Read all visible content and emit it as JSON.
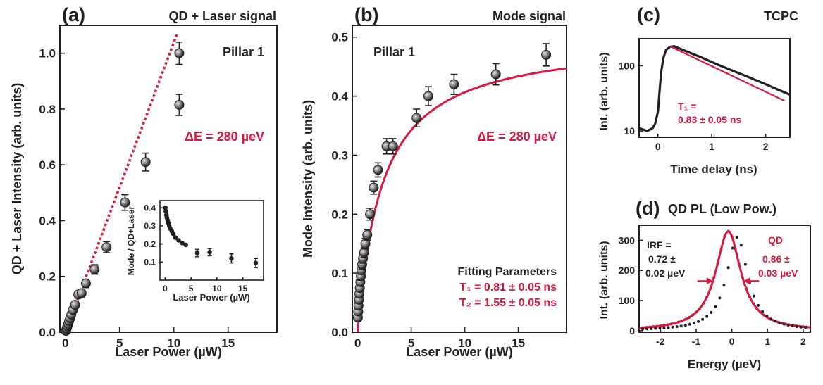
{
  "colors": {
    "ink": "#231f20",
    "accent": "#d7193f",
    "marker_light": "#e8e8e8"
  },
  "chart_data": [
    {
      "id": "a",
      "type": "scatter",
      "panel_label": "(a)",
      "title": "QD + Laser signal",
      "xlabel": "Laser Power (µW)",
      "ylabel": "QD + Laser Intensity (arb. units)",
      "xlim": [
        -0.5,
        19.5
      ],
      "ylim": [
        0,
        1.1
      ],
      "xticks": [
        0,
        5,
        10,
        15
      ],
      "yticks": [
        0.0,
        0.2,
        0.4,
        0.6,
        0.8,
        1.0
      ],
      "ytick_labels": [
        "0.0",
        "0.2",
        "0.4",
        "0.6",
        "0.8",
        "1.0"
      ],
      "annotations": [
        "Pillar 1",
        "ΔE = 280 µeV"
      ],
      "fit": {
        "style": "dotted-red",
        "x": [
          0,
          10.3
        ],
        "y": [
          0,
          1.07
        ]
      },
      "series": [
        {
          "x": [
            0.05,
            0.1,
            0.15,
            0.2,
            0.28,
            0.35,
            0.45,
            0.55,
            0.7,
            0.9,
            1.2,
            1.5,
            1.9,
            2.7,
            3.8,
            5.5,
            7.4,
            10.5
          ],
          "y": [
            0.005,
            0.01,
            0.015,
            0.022,
            0.03,
            0.04,
            0.05,
            0.063,
            0.08,
            0.098,
            0.135,
            0.14,
            0.175,
            0.225,
            0.305,
            0.465,
            0.61,
            0.815
          ],
          "err": [
            0.005,
            0.005,
            0.006,
            0.006,
            0.007,
            0.008,
            0.009,
            0.01,
            0.01,
            0.012,
            0.013,
            0.013,
            0.015,
            0.017,
            0.02,
            0.028,
            0.032,
            0.038
          ]
        }
      ],
      "extra_point": {
        "x": 10.5,
        "y": 1.0,
        "err": 0.04
      }
    },
    {
      "id": "a-inset",
      "type": "scatter",
      "xlabel": "Laser Power (µW)",
      "ylabel": "Mode / QD+Laser",
      "xlim": [
        -1,
        19
      ],
      "ylim": [
        0.0,
        0.44
      ],
      "xticks": [
        0,
        5,
        10,
        15
      ],
      "yticks": [
        0.1,
        0.2,
        0.3,
        0.4
      ],
      "ytick_labels": [
        "0.1",
        "0.2",
        "0.3",
        "0.4"
      ],
      "series": [
        {
          "x": [
            0.05,
            0.15,
            0.25,
            0.35,
            0.5,
            0.65,
            0.8,
            1.0,
            1.3,
            1.6,
            2.0,
            2.6,
            3.3,
            4.0,
            6.2,
            8.6,
            12.8,
            17.5
          ],
          "y": [
            0.4,
            0.38,
            0.36,
            0.345,
            0.33,
            0.315,
            0.3,
            0.285,
            0.27,
            0.255,
            0.235,
            0.22,
            0.205,
            0.195,
            0.15,
            0.155,
            0.12,
            0.095
          ],
          "err": [
            0,
            0,
            0,
            0,
            0,
            0,
            0,
            0,
            0,
            0,
            0,
            0,
            0,
            0,
            0.02,
            0.02,
            0.025,
            0.025
          ]
        }
      ]
    },
    {
      "id": "b",
      "type": "scatter",
      "panel_label": "(b)",
      "title": "Mode signal",
      "xlabel": "Laser Power (µW)",
      "ylabel": "Mode Intensity (arb. units)",
      "xlim": [
        -0.5,
        19.5
      ],
      "ylim": [
        0,
        0.52
      ],
      "xticks": [
        0,
        5,
        10,
        15
      ],
      "yticks": [
        0.0,
        0.1,
        0.2,
        0.3,
        0.4,
        0.5
      ],
      "ytick_labels": [
        "0.0",
        "0.1",
        "0.2",
        "0.3",
        "0.4",
        "0.5"
      ],
      "annotations": [
        "Pillar 1",
        "ΔE = 280 µeV"
      ],
      "fit_label": "Fitting Parameters",
      "fit_params": [
        "T₁ = 0.81 ± 0.05 ns",
        "T₂ = 1.55 ± 0.05 ns"
      ],
      "fit": {
        "style": "solid-red",
        "model": "saturation",
        "ymax": 0.5,
        "p0": 2.3,
        "x_end": 19.5
      },
      "series": [
        {
          "x": [
            0.02,
            0.05,
            0.08,
            0.12,
            0.16,
            0.2,
            0.25,
            0.3,
            0.35,
            0.42,
            0.5,
            0.6,
            0.72,
            0.9,
            1.15,
            1.5,
            1.9,
            2.7,
            3.3,
            5.5,
            6.6,
            9.0,
            12.9,
            17.6
          ],
          "y": [
            0.025,
            0.035,
            0.045,
            0.055,
            0.065,
            0.075,
            0.085,
            0.095,
            0.105,
            0.115,
            0.125,
            0.135,
            0.15,
            0.165,
            0.2,
            0.245,
            0.275,
            0.315,
            0.315,
            0.363,
            0.4,
            0.42,
            0.437,
            0.47
          ],
          "err": [
            0.005,
            0.005,
            0.005,
            0.006,
            0.006,
            0.006,
            0.007,
            0.007,
            0.007,
            0.008,
            0.008,
            0.008,
            0.009,
            0.009,
            0.01,
            0.011,
            0.012,
            0.013,
            0.013,
            0.015,
            0.016,
            0.017,
            0.018,
            0.019
          ]
        }
      ]
    },
    {
      "id": "c",
      "type": "line",
      "panel_label": "(c)",
      "title": "TCPC",
      "xlabel": "Time delay (ns)",
      "ylabel": "Int. (arb. units)",
      "yscale": "log",
      "xlim": [
        -0.35,
        2.45
      ],
      "ylim": [
        8,
        260
      ],
      "xticks": [
        0,
        1,
        2
      ],
      "yticks": [
        10,
        100
      ],
      "ytick_labels": [
        "10",
        "100"
      ],
      "annotations": [
        "T₁ =",
        "0.83 ± 0.05 ns"
      ],
      "series": [
        {
          "name": "data",
          "x": [
            -0.35,
            -0.2,
            -0.1,
            -0.05,
            0.0,
            0.03,
            0.06,
            0.1,
            0.15,
            0.22,
            0.3,
            0.5,
            0.8,
            1.1,
            1.4,
            1.7,
            2.0,
            2.2,
            2.45
          ],
          "y": [
            11,
            10,
            11,
            13,
            20,
            40,
            80,
            130,
            175,
            195,
            200,
            170,
            135,
            105,
            83,
            66,
            52,
            44,
            36
          ]
        },
        {
          "name": "fit",
          "x": [
            0.22,
            2.35
          ],
          "y": [
            200,
            29
          ]
        }
      ]
    },
    {
      "id": "d",
      "type": "line",
      "panel_label": "(d)",
      "title": "QD PL (Low Pow.)",
      "xlabel": "Energy (µeV)",
      "ylabel": "Int. (arb. units)",
      "xlim": [
        -2.6,
        2.2
      ],
      "ylim": [
        -5,
        350
      ],
      "xticks": [
        -2,
        -1,
        0,
        1,
        2
      ],
      "yticks": [
        0,
        100,
        200,
        300
      ],
      "ytick_labels": [
        "0",
        "100",
        "200",
        "300"
      ],
      "annotations": [
        "IRF =",
        "0.72 ±",
        "0.02 µeV",
        "QD",
        "0.86 ±",
        "0.03 µeV"
      ],
      "lorentz": {
        "center": -0.1,
        "fwhm": 0.86,
        "amplitude": 330
      },
      "irf_points": {
        "center": 0.0,
        "fwhm": 0.72,
        "amplitude": 310,
        "shift": 0.15
      }
    }
  ]
}
